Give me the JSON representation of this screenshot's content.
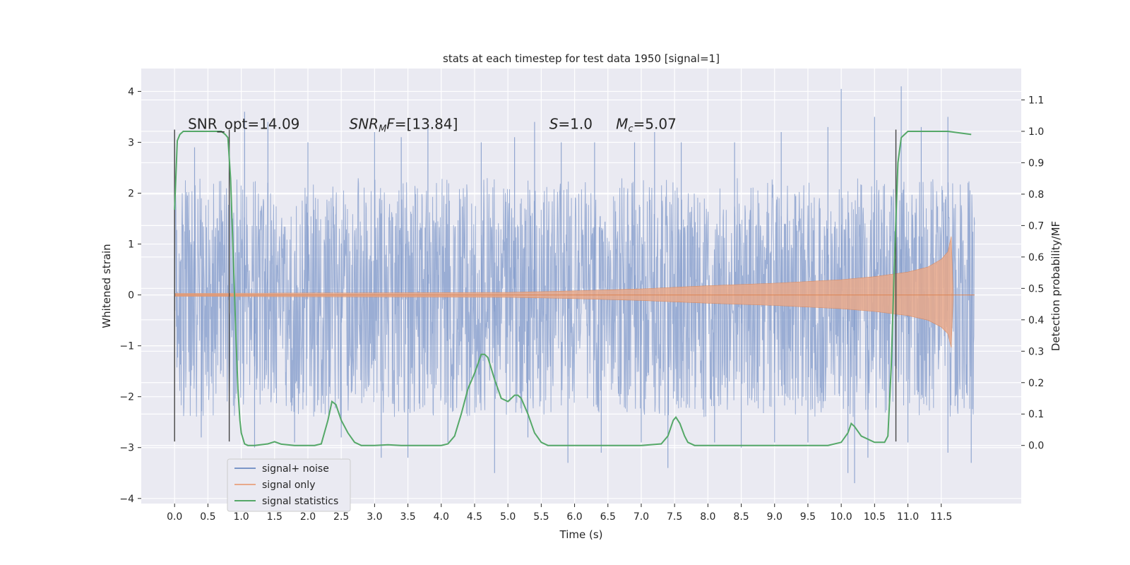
{
  "chart_data": {
    "type": "line",
    "title": "stats at each timestep for test data 1950 [signal=1]",
    "xlabel": "Time (s)",
    "ylabel": "Whitened strain",
    "y2label": "Detection probability/MF",
    "xlim": [
      -0.5,
      12.7
    ],
    "ylim": [
      -4.1,
      4.45
    ],
    "y2lim": [
      -0.185,
      1.2
    ],
    "x_ticks": [
      0.0,
      0.5,
      1.0,
      1.5,
      2.0,
      2.5,
      3.0,
      3.5,
      4.0,
      4.5,
      5.0,
      5.5,
      6.0,
      6.5,
      7.0,
      7.5,
      8.0,
      8.5,
      9.0,
      9.5,
      10.0,
      10.5,
      11.0,
      11.5
    ],
    "x_tick_labels": [
      "0.0",
      "0.5",
      "1.0",
      "1.5",
      "2.0",
      "2.5",
      "3.0",
      "3.5",
      "4.0",
      "4.5",
      "5.0",
      "5.5",
      "6.0",
      "6.5",
      "7.0",
      "7.5",
      "8.0",
      "8.5",
      "9.0",
      "9.5",
      "10.0",
      "10.5",
      "11.0",
      "11.5"
    ],
    "y_ticks": [
      -4,
      -3,
      -2,
      -1,
      0,
      1,
      2,
      3,
      4
    ],
    "y_tick_labels": [
      "−4",
      "−3",
      "−2",
      "−1",
      "0",
      "1",
      "2",
      "3",
      "4"
    ],
    "y2_ticks": [
      0.0,
      0.1,
      0.2,
      0.3,
      0.4,
      0.5,
      0.6,
      0.7,
      0.8,
      0.9,
      1.0,
      1.1
    ],
    "y2_tick_labels": [
      "0.0",
      "0.1",
      "0.2",
      "0.3",
      "0.4",
      "0.5",
      "0.6",
      "0.7",
      "0.8",
      "0.9",
      "1.0",
      "1.1"
    ],
    "grid": true,
    "legend_position": "lower-left",
    "series": [
      {
        "name": "signal+ noise",
        "axis": "left",
        "color": "#7b96c8",
        "x_range": [
          0.0,
          12.0
        ],
        "dense_band": [
          -1.3,
          1.4
        ],
        "typical_envelope": [
          -2.4,
          2.3
        ],
        "x_peaks": [
          0.3,
          1.05,
          1.4,
          2.0,
          3.0,
          3.4,
          3.8,
          4.6,
          5.1,
          5.4,
          5.8,
          6.3,
          6.9,
          7.2,
          7.6,
          8.4,
          9.1,
          9.8,
          10.0,
          10.5,
          10.9,
          11.2,
          11.6
        ],
        "y_peaks": [
          2.9,
          3.6,
          3.4,
          3.0,
          3.2,
          3.1,
          3.3,
          3.0,
          3.1,
          3.4,
          3.0,
          3.0,
          3.0,
          3.2,
          3.0,
          3.0,
          3.2,
          3.3,
          4.05,
          3.5,
          4.1,
          3.3,
          3.5
        ],
        "x_troughs": [
          0.4,
          1.2,
          1.8,
          2.5,
          3.1,
          3.5,
          4.1,
          4.8,
          5.3,
          5.9,
          6.4,
          7.0,
          7.4,
          8.1,
          8.5,
          9.0,
          9.5,
          10.1,
          10.2,
          10.4,
          11.0,
          11.6,
          11.95
        ],
        "y_troughs": [
          -2.8,
          -3.0,
          -2.9,
          -2.8,
          -3.2,
          -3.2,
          -2.9,
          -3.5,
          -2.8,
          -3.3,
          -3.1,
          -2.9,
          -3.4,
          -2.9,
          -3.0,
          -2.9,
          -2.9,
          -3.5,
          -3.7,
          -3.2,
          -2.9,
          -3.1,
          -3.3
        ]
      },
      {
        "name": "signal only",
        "axis": "left",
        "color": "#dd8452",
        "x": [
          0.0,
          5.0,
          6.0,
          7.0,
          8.0,
          9.0,
          10.0,
          10.5,
          11.0,
          11.3,
          11.5,
          11.6,
          11.65,
          11.68
        ],
        "envelope": [
          0.03,
          0.05,
          0.08,
          0.12,
          0.18,
          0.23,
          0.3,
          0.36,
          0.45,
          0.55,
          0.7,
          0.85,
          1.15,
          0.0
        ]
      },
      {
        "name": "signal statistics",
        "axis": "right",
        "color": "#55a868",
        "x": [
          0.0,
          0.04,
          0.08,
          0.13,
          0.2,
          0.3,
          0.5,
          0.7,
          0.76,
          0.8,
          0.84,
          0.88,
          0.92,
          0.95,
          0.98,
          1.0,
          1.05,
          1.1,
          1.2,
          1.4,
          1.5,
          1.6,
          1.8,
          2.0,
          2.1,
          2.2,
          2.3,
          2.36,
          2.42,
          2.5,
          2.6,
          2.7,
          2.8,
          3.0,
          3.2,
          3.4,
          3.6,
          3.8,
          4.0,
          4.1,
          4.2,
          4.3,
          4.4,
          4.5,
          4.6,
          4.65,
          4.7,
          4.8,
          4.9,
          5.0,
          5.1,
          5.15,
          5.2,
          5.3,
          5.4,
          5.5,
          5.6,
          5.8,
          6.0,
          7.0,
          7.3,
          7.4,
          7.48,
          7.52,
          7.58,
          7.65,
          7.7,
          7.8,
          8.0,
          9.0,
          9.8,
          10.0,
          10.1,
          10.15,
          10.2,
          10.3,
          10.5,
          10.65,
          10.7,
          10.75,
          10.8,
          10.85,
          10.9,
          10.95,
          11.0,
          11.2,
          11.6,
          11.95
        ],
        "y": [
          0.75,
          0.97,
          0.99,
          1.0,
          1.0,
          1.0,
          1.0,
          1.0,
          0.99,
          0.98,
          0.85,
          0.6,
          0.35,
          0.18,
          0.08,
          0.04,
          0.005,
          0.0,
          0.0,
          0.005,
          0.012,
          0.004,
          0.0,
          0.0,
          0.0,
          0.005,
          0.08,
          0.14,
          0.13,
          0.08,
          0.04,
          0.01,
          0.0,
          0.0,
          0.002,
          0.0,
          0.0,
          0.0,
          0.0,
          0.005,
          0.03,
          0.1,
          0.18,
          0.23,
          0.29,
          0.29,
          0.28,
          0.21,
          0.15,
          0.14,
          0.16,
          0.16,
          0.15,
          0.1,
          0.04,
          0.01,
          0.0,
          0.0,
          0.0,
          0.0,
          0.005,
          0.03,
          0.08,
          0.09,
          0.07,
          0.03,
          0.01,
          0.0,
          0.0,
          0.0,
          0.0,
          0.01,
          0.04,
          0.07,
          0.06,
          0.03,
          0.01,
          0.01,
          0.03,
          0.25,
          0.6,
          0.9,
          0.98,
          0.99,
          1.0,
          1.0,
          1.0,
          0.99
        ]
      }
    ],
    "vertical_markers": [
      {
        "x": 0.0,
        "y_top": 3.25,
        "y_bottom": -2.88
      },
      {
        "x": 0.82,
        "y_top": 3.25,
        "y_bottom": -2.88
      },
      {
        "x": 10.82,
        "y_top": 3.25,
        "y_bottom": -2.88
      }
    ],
    "annotations": [
      {
        "id": "snr-opt",
        "x": 0.2,
        "y": 3.25,
        "text": "SNR_opt=14.09"
      },
      {
        "id": "snr-mf",
        "x": 2.62,
        "y": 3.25,
        "text": "=[13.84]",
        "prefix": "SNR",
        "sub": "M",
        "mid": "F"
      },
      {
        "id": "s-val",
        "x": 5.62,
        "y": 3.25,
        "text": "=1.0",
        "prefix": "S"
      },
      {
        "id": "mc-val",
        "x": 6.62,
        "y": 3.25,
        "text": "=5.07",
        "prefix": "M",
        "sub": "c"
      }
    ]
  }
}
